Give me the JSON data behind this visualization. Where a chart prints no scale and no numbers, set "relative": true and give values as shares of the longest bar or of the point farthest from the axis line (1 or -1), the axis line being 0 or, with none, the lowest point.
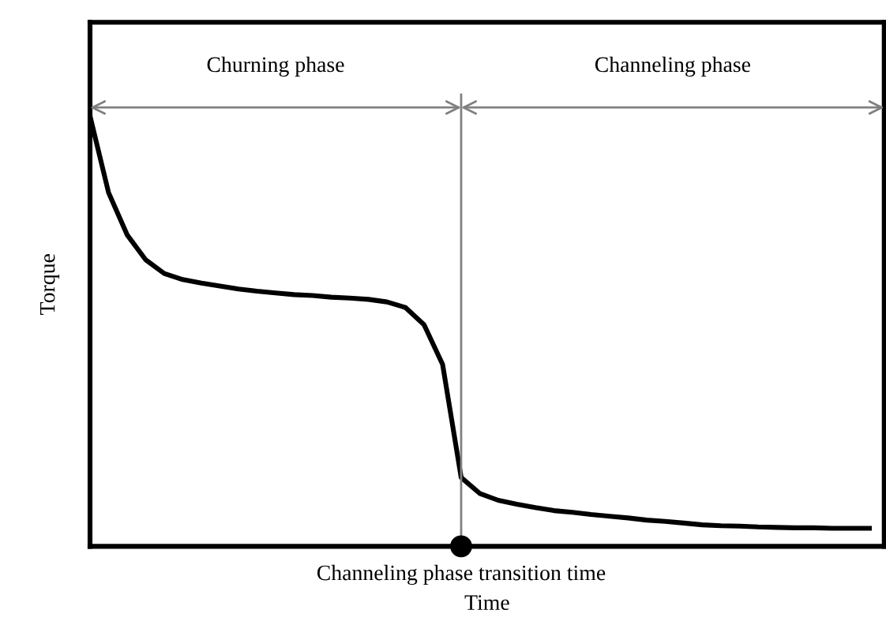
{
  "chart_data": {
    "type": "line",
    "relative": true,
    "xlabel": "Time",
    "ylabel": "Torque",
    "categories": [
      null,
      null,
      null,
      null,
      null,
      null,
      null,
      null,
      null,
      null,
      null,
      null,
      null,
      null,
      null,
      null,
      null,
      null,
      null,
      null,
      null,
      null,
      null,
      null,
      null,
      null,
      null,
      null,
      null,
      null,
      null,
      null,
      null,
      null,
      null,
      null,
      null,
      null,
      null,
      null,
      null,
      null,
      null
    ],
    "series": [
      {
        "color": "#000000",
        "values": [
          1,
          0.822,
          0.724,
          0.666,
          0.634,
          0.62,
          0.612,
          0.605,
          0.598,
          0.593,
          0.589,
          0.585,
          0.583,
          0.579,
          0.577,
          0.574,
          0.568,
          0.555,
          0.515,
          0.423,
          0.16,
          0.123,
          0.107,
          0.098,
          0.09,
          0.083,
          0.079,
          0.074,
          0.07,
          0.066,
          0.061,
          0.058,
          0.054,
          0.05,
          0.048,
          0.047,
          0.045,
          0.044,
          0.043,
          0.043,
          0.042,
          0.042,
          0.042
        ]
      }
    ],
    "annotations": [
      "Churning phase",
      "Channeling phase",
      "Channeling phase transition time"
    ],
    "marker": "none",
    "line_style": "solid",
    "legend": false
  }
}
